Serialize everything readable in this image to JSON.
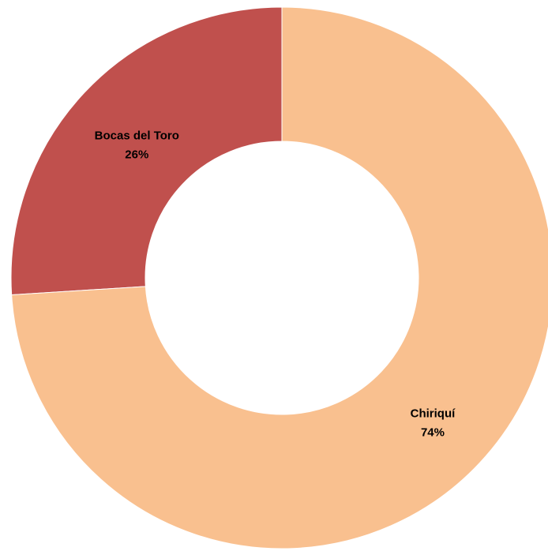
{
  "chart_data": {
    "type": "pie",
    "donut": true,
    "title": "",
    "categories": [
      "Bocas del Toro",
      "Chiriquí"
    ],
    "values": [
      26,
      74
    ],
    "labels": [
      {
        "name": "Bocas del Toro",
        "percent": "26%"
      },
      {
        "name": "Chiriquí",
        "percent": "74%"
      }
    ],
    "colors": [
      "#c0504d",
      "#f9c08f"
    ],
    "legend": "none",
    "start": "top",
    "direction": "counterclockwise-from-top-for-first-slice"
  }
}
